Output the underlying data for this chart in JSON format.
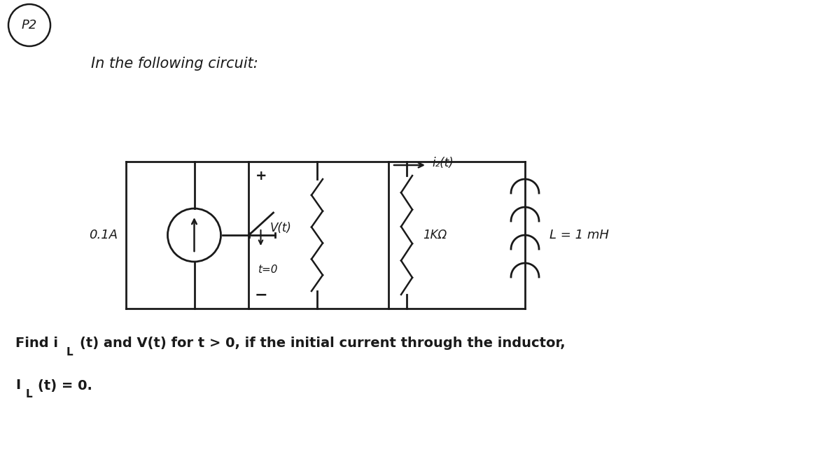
{
  "bg_color": "#ffffff",
  "problem_label": "P2",
  "title_text": "In the following circuit:",
  "current_source_value": "0.1A",
  "switch_label": "t=0",
  "voltage_label": "V(t)",
  "resistor_label": "1KΩ",
  "inductor_label": "L = 1 mH",
  "il_label": "i₂(t)",
  "plus_label": "+",
  "minus_label": "−",
  "bottom_line1": "Find i",
  "bottom_line1b": "L",
  "bottom_line1c": "(t) and V(t) for t > 0, if the initial current through the inductor,",
  "bottom_line2": "I",
  "bottom_line2b": "L",
  "bottom_line2c": "(t) = 0.",
  "line_color": "#1a1a1a",
  "text_color": "#1a1a1a"
}
